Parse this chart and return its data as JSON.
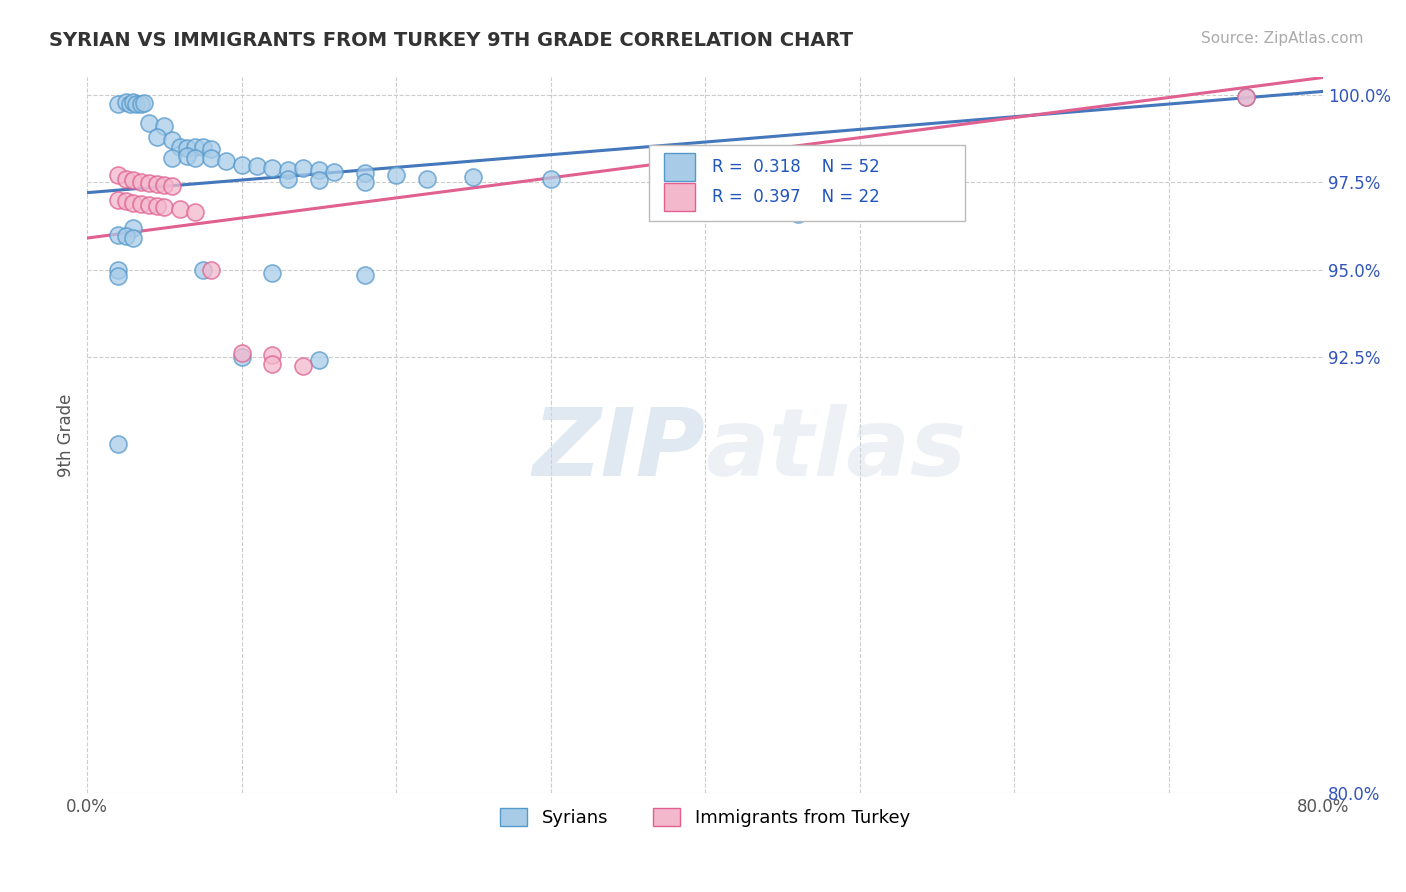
{
  "title": "SYRIAN VS IMMIGRANTS FROM TURKEY 9TH GRADE CORRELATION CHART",
  "source_text": "Source: ZipAtlas.com",
  "ylabel": "9th Grade",
  "xlim": [
    0.0,
    0.8
  ],
  "ylim": [
    0.8,
    1.005
  ],
  "ytick_labels": [
    "80.0%",
    "92.5%",
    "95.0%",
    "97.5%",
    "100.0%"
  ],
  "ytick_values": [
    0.8,
    0.925,
    0.95,
    0.975,
    1.0
  ],
  "xtick_values": [
    0.0,
    0.1,
    0.2,
    0.3,
    0.4,
    0.5,
    0.6,
    0.7,
    0.8
  ],
  "xtick_labels": [
    "0.0%",
    "",
    "",
    "",
    "",
    "",
    "",
    "",
    "80.0%"
  ],
  "legend_label1": "Syrians",
  "legend_label2": "Immigrants from Turkey",
  "color_blue": "#a8cce8",
  "color_pink": "#f4b8cc",
  "color_blue_edge": "#5599cc",
  "color_pink_edge": "#e06090",
  "color_blue_line": "#4477bb",
  "color_pink_line": "#e06090",
  "scatter_blue": [
    [
      0.02,
      0.9975
    ],
    [
      0.025,
      0.998
    ],
    [
      0.028,
      0.9975
    ],
    [
      0.03,
      0.998
    ],
    [
      0.032,
      0.9975
    ],
    [
      0.035,
      0.9975
    ],
    [
      0.037,
      0.9978
    ],
    [
      0.04,
      0.992
    ],
    [
      0.05,
      0.991
    ],
    [
      0.045,
      0.988
    ],
    [
      0.055,
      0.987
    ],
    [
      0.06,
      0.985
    ],
    [
      0.065,
      0.9848
    ],
    [
      0.07,
      0.9852
    ],
    [
      0.075,
      0.985
    ],
    [
      0.08,
      0.9845
    ],
    [
      0.055,
      0.982
    ],
    [
      0.065,
      0.9825
    ],
    [
      0.07,
      0.982
    ],
    [
      0.08,
      0.9818
    ],
    [
      0.09,
      0.981
    ],
    [
      0.1,
      0.98
    ],
    [
      0.11,
      0.9795
    ],
    [
      0.12,
      0.979
    ],
    [
      0.13,
      0.9785
    ],
    [
      0.14,
      0.979
    ],
    [
      0.15,
      0.9785
    ],
    [
      0.16,
      0.978
    ],
    [
      0.18,
      0.9775
    ],
    [
      0.2,
      0.977
    ],
    [
      0.13,
      0.976
    ],
    [
      0.15,
      0.9755
    ],
    [
      0.22,
      0.976
    ],
    [
      0.18,
      0.975
    ],
    [
      0.25,
      0.9765
    ],
    [
      0.3,
      0.9758
    ],
    [
      0.46,
      0.966
    ],
    [
      0.03,
      0.962
    ],
    [
      0.02,
      0.96
    ],
    [
      0.025,
      0.9595
    ],
    [
      0.03,
      0.959
    ],
    [
      0.02,
      0.95
    ],
    [
      0.02,
      0.948
    ],
    [
      0.075,
      0.95
    ],
    [
      0.12,
      0.949
    ],
    [
      0.18,
      0.9485
    ],
    [
      0.02,
      0.9
    ],
    [
      0.1,
      0.925
    ],
    [
      0.15,
      0.924
    ],
    [
      0.75,
      0.9995
    ]
  ],
  "scatter_pink": [
    [
      0.02,
      0.977
    ],
    [
      0.025,
      0.976
    ],
    [
      0.03,
      0.9755
    ],
    [
      0.035,
      0.975
    ],
    [
      0.04,
      0.9748
    ],
    [
      0.045,
      0.9745
    ],
    [
      0.05,
      0.9742
    ],
    [
      0.055,
      0.9738
    ],
    [
      0.02,
      0.97
    ],
    [
      0.025,
      0.9695
    ],
    [
      0.03,
      0.969
    ],
    [
      0.035,
      0.9688
    ],
    [
      0.04,
      0.9685
    ],
    [
      0.045,
      0.9682
    ],
    [
      0.05,
      0.9678
    ],
    [
      0.06,
      0.9672
    ],
    [
      0.07,
      0.9665
    ],
    [
      0.08,
      0.95
    ],
    [
      0.1,
      0.926
    ],
    [
      0.12,
      0.9255
    ],
    [
      0.12,
      0.923
    ],
    [
      0.14,
      0.9225
    ],
    [
      0.75,
      0.9995
    ]
  ],
  "blue_line_x": [
    0.0,
    0.8
  ],
  "blue_line_y": [
    0.972,
    1.001
  ],
  "pink_line_x": [
    0.0,
    0.8
  ],
  "pink_line_y": [
    0.959,
    1.005
  ],
  "watermark_zip": "ZIP",
  "watermark_atlas": "atlas",
  "background_color": "#ffffff",
  "grid_color": "#cccccc"
}
